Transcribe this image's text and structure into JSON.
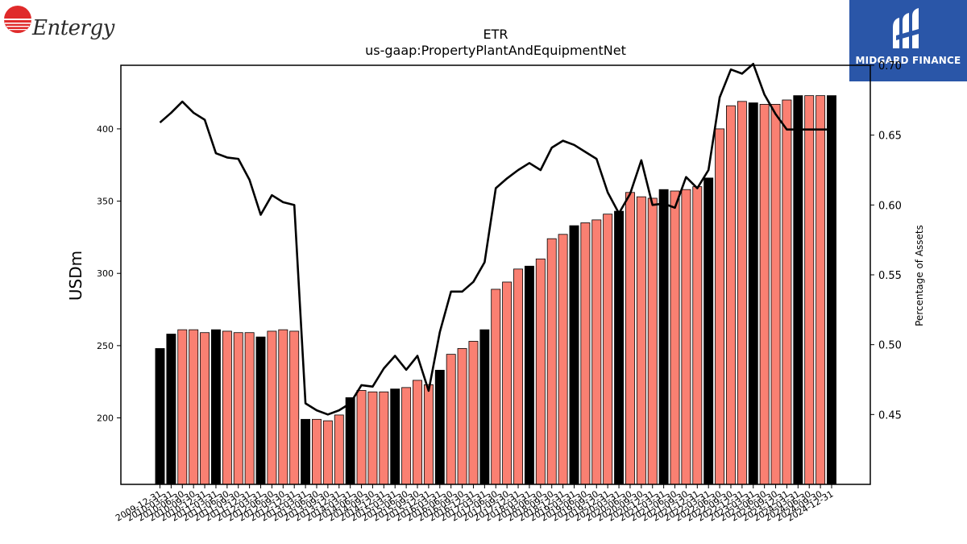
{
  "logos": {
    "left": "Entergy",
    "right": "MIDGARD FINANCE"
  },
  "chart_data": {
    "type": "bar",
    "title": "ETR",
    "subtitle": "us-gaap:PropertyPlantAndEquipmentNet",
    "ylabel": "USDm",
    "y2label": "Percentage of Assets",
    "ylim": [
      154,
      444
    ],
    "y2lim": [
      0.4,
      0.7
    ],
    "yticks": [
      200,
      250,
      300,
      350,
      400
    ],
    "y2ticks": [
      "0.45",
      "0.50",
      "0.55",
      "0.60",
      "0.65",
      "0.70"
    ],
    "colors": {
      "quarterly": "#fa8072",
      "annual": "#000000",
      "line": "#000000"
    },
    "categories": [
      "2009-12-31",
      "2010-03-31",
      "2010-06-30",
      "2010-09-30",
      "2010-12-31",
      "2011-03-31",
      "2011-06-30",
      "2011-09-30",
      "2011-12-31",
      "2012-03-31",
      "2012-06-30",
      "2012-09-30",
      "2012-12-31",
      "2013-03-31",
      "2013-06-30",
      "2013-09-30",
      "2013-12-31",
      "2014-03-31",
      "2014-06-30",
      "2014-09-30",
      "2014-12-31",
      "2015-03-31",
      "2015-06-30",
      "2015-09-30",
      "2015-12-31",
      "2016-03-31",
      "2016-06-30",
      "2016-09-30",
      "2016-12-31",
      "2017-03-31",
      "2017-06-30",
      "2017-09-30",
      "2017-12-31",
      "2018-03-31",
      "2018-06-30",
      "2018-09-30",
      "2018-12-31",
      "2019-03-31",
      "2019-06-30",
      "2019-09-30",
      "2019-12-31",
      "2020-03-31",
      "2020-06-30",
      "2020-09-30",
      "2020-12-31",
      "2021-03-31",
      "2021-06-30",
      "2021-09-30",
      "2021-12-31",
      "2022-03-31",
      "2022-06-30",
      "2022-09-30",
      "2022-12-31",
      "2023-03-31",
      "2023-06-30",
      "2023-09-30",
      "2023-12-31",
      "2024-03-31",
      "2024-06-30",
      "2024-09-30",
      "2024-12-31"
    ],
    "tick_labels": [
      "2009-12-31",
      "2010-03-31",
      "2010-06-30",
      "2010-09-30",
      "2010-12-31",
      "2011-03-31",
      "2011-06-30",
      "2011-09-30",
      "2011-12-31",
      "2012-03-31",
      "2012-06-30",
      "2012-09-30",
      "2012-12-31",
      "2013-03-31",
      "2013-06-30",
      "2013-09-30",
      "2013-12-31",
      "2014-03-31",
      "2014-06-30",
      "2014-09-30",
      "2014-12-31",
      "2015-03-31",
      "2015-06-30",
      "2015-09-30",
      "2015-12-31",
      "2016-03-31",
      "2016-06-30",
      "2016-09-30",
      "2016-12-31",
      "2017-03-31",
      "2017-06-30",
      "2017-09-30",
      "2017-12-31",
      "2018-03-31",
      "2018-06-30",
      "2018-09-30",
      "2018-12-31",
      "2019-03-31",
      "2019-06-30",
      "2019-09-30",
      "2019-12-31",
      "2020-03-31",
      "2020-06-30",
      "2020-09-30",
      "2020-12-31",
      "2021-03-31",
      "2021-06-30",
      "2021-09-30",
      "2021-12-31",
      "2022-03-31",
      "2022-06-30",
      "2022-09-30",
      "2022-12-31",
      "2023-03-31",
      "2023-06-30",
      "2023-09-30",
      "2023-12-31",
      "2024-03-31",
      "2024-06-30",
      "2024-09-30",
      "2024-12-31"
    ],
    "annual_flags": [
      1,
      1,
      0,
      0,
      0,
      1,
      0,
      0,
      0,
      1,
      0,
      0,
      0,
      1,
      0,
      0,
      0,
      1,
      0,
      0,
      0,
      1,
      0,
      0,
      0,
      1,
      0,
      0,
      0,
      1,
      0,
      0,
      0,
      1,
      0,
      0,
      0,
      1,
      0,
      0,
      0,
      1,
      0,
      0,
      0,
      1,
      0,
      0,
      0,
      1,
      0,
      0,
      0,
      1,
      0,
      0,
      0,
      1,
      0,
      0,
      1
    ],
    "series": [
      {
        "type": "bar",
        "values": [
          248,
          258,
          261,
          261,
          259,
          261,
          260,
          259,
          259,
          256,
          260,
          261,
          260,
          199,
          199,
          198,
          202,
          214,
          219,
          218,
          218,
          220,
          221,
          226,
          223,
          233,
          244,
          248,
          253,
          261,
          289,
          294,
          303,
          305,
          310,
          324,
          327,
          333,
          335,
          337,
          341,
          343,
          356,
          353,
          352,
          358,
          357,
          358,
          360,
          366,
          400,
          416,
          419,
          418,
          417,
          417,
          420,
          423,
          423,
          423,
          423
        ]
      },
      {
        "type": "line",
        "axis": "y2",
        "values": [
          0.659,
          0.666,
          0.674,
          0.666,
          0.661,
          0.637,
          0.634,
          0.633,
          0.618,
          0.593,
          0.607,
          0.602,
          0.6,
          0.458,
          0.453,
          0.45,
          0.453,
          0.458,
          0.471,
          0.47,
          0.483,
          0.492,
          0.482,
          0.492,
          0.467,
          0.509,
          0.538,
          0.538,
          0.545,
          0.559,
          0.612,
          0.619,
          0.625,
          0.63,
          0.625,
          0.641,
          0.646,
          0.643,
          0.638,
          0.633,
          0.609,
          0.594,
          0.608,
          0.632,
          0.6,
          0.601,
          0.598,
          0.62,
          0.612,
          0.625,
          0.677,
          0.697,
          0.694,
          0.701,
          0.679,
          0.665,
          0.654,
          0.654,
          0.654,
          0.654,
          0.654
        ]
      }
    ]
  }
}
